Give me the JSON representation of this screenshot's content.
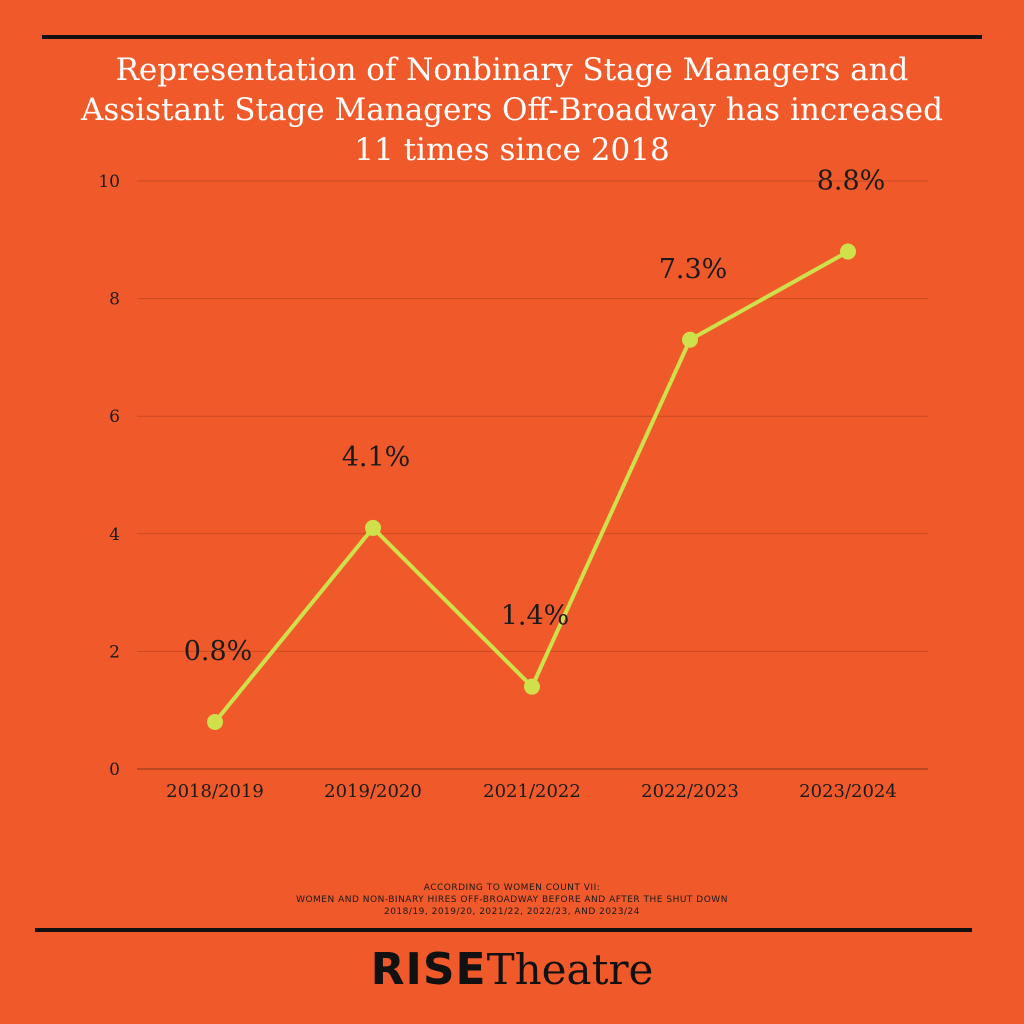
{
  "chart_data": {
    "type": "line",
    "title": "Representation of Nonbinary Stage Managers and Assistant Stage Managers Off-Broadway has increased 11 times since 2018",
    "categories": [
      "2018/2019",
      "2019/2020",
      "2021/2022",
      "2022/2023",
      "2023/2024"
    ],
    "series": [
      {
        "values": [
          0.8,
          4.1,
          1.4,
          7.3,
          8.8
        ]
      }
    ],
    "data_labels": [
      "0.8%",
      "4.1%",
      "1.4%",
      "7.3%",
      "8.8%"
    ],
    "ylim": [
      0,
      10
    ],
    "yticks": [
      0,
      2,
      4,
      6,
      8,
      10
    ],
    "grid": true,
    "xlabel": "",
    "ylabel": "",
    "colors": {
      "line": "#cfe04a",
      "background": "#f05a2a",
      "grid": "#c94a22",
      "text": "#1a1a1a"
    }
  },
  "source": {
    "line1": "ACCORDING TO WOMEN COUNT VII:",
    "line2": "WOMEN AND NON-BINARY HIRES OFF-BROADWAY BEFORE AND AFTER THE SHUT DOWN",
    "line3": "2018/19, 2019/20, 2021/22, 2022/23, AND 2023/24"
  },
  "brand": {
    "bold": "RISE",
    "light": "Theatre"
  }
}
